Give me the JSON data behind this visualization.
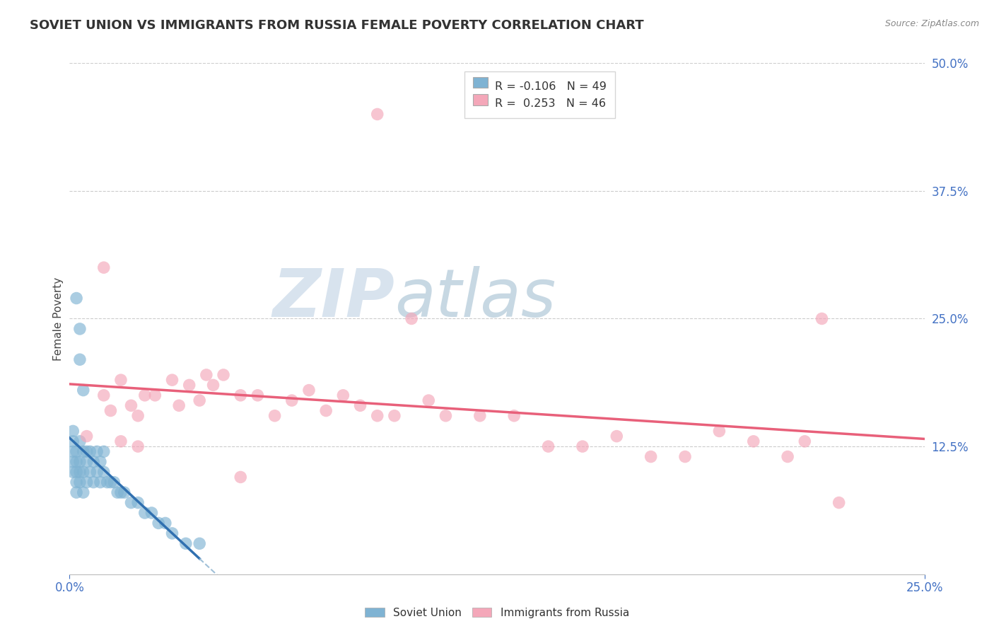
{
  "title": "SOVIET UNION VS IMMIGRANTS FROM RUSSIA FEMALE POVERTY CORRELATION CHART",
  "source": "Source: ZipAtlas.com",
  "ylabel": "Female Poverty",
  "xlim": [
    0.0,
    0.25
  ],
  "ylim": [
    0.0,
    0.5
  ],
  "xtick_labels": [
    "0.0%",
    "25.0%"
  ],
  "xtick_pos": [
    0.0,
    0.25
  ],
  "ytick_labels": [
    "12.5%",
    "25.0%",
    "37.5%",
    "50.0%"
  ],
  "ytick_positions": [
    0.125,
    0.25,
    0.375,
    0.5
  ],
  "legend_labels": [
    "Soviet Union",
    "Immigrants from Russia"
  ],
  "legend_r": [
    -0.106,
    0.253
  ],
  "legend_n": [
    49,
    46
  ],
  "blue_scatter_color": "#7fb3d3",
  "pink_scatter_color": "#f4a7b9",
  "blue_line_color": "#3070b0",
  "pink_line_color": "#e8607a",
  "dash_ext_color": "#a0c0d8",
  "watermark_zip": "ZIP",
  "watermark_atlas": "atlas",
  "soviet_x": [
    0.001,
    0.001,
    0.001,
    0.001,
    0.001,
    0.002,
    0.002,
    0.002,
    0.002,
    0.002,
    0.003,
    0.003,
    0.003,
    0.003,
    0.004,
    0.004,
    0.004,
    0.005,
    0.005,
    0.005,
    0.006,
    0.006,
    0.007,
    0.007,
    0.008,
    0.008,
    0.009,
    0.009,
    0.01,
    0.01,
    0.011,
    0.012,
    0.013,
    0.014,
    0.015,
    0.016,
    0.018,
    0.02,
    0.022,
    0.024,
    0.026,
    0.028,
    0.03,
    0.034,
    0.038,
    0.002,
    0.003,
    0.003,
    0.004
  ],
  "soviet_y": [
    0.1,
    0.11,
    0.12,
    0.13,
    0.14,
    0.08,
    0.09,
    0.1,
    0.11,
    0.12,
    0.09,
    0.1,
    0.11,
    0.13,
    0.08,
    0.1,
    0.12,
    0.09,
    0.11,
    0.12,
    0.1,
    0.12,
    0.09,
    0.11,
    0.1,
    0.12,
    0.09,
    0.11,
    0.1,
    0.12,
    0.09,
    0.09,
    0.09,
    0.08,
    0.08,
    0.08,
    0.07,
    0.07,
    0.06,
    0.06,
    0.05,
    0.05,
    0.04,
    0.03,
    0.03,
    0.27,
    0.24,
    0.21,
    0.18
  ],
  "russia_x": [
    0.01,
    0.012,
    0.015,
    0.018,
    0.02,
    0.022,
    0.025,
    0.03,
    0.032,
    0.035,
    0.038,
    0.04,
    0.042,
    0.045,
    0.05,
    0.055,
    0.06,
    0.065,
    0.07,
    0.075,
    0.08,
    0.085,
    0.09,
    0.095,
    0.1,
    0.105,
    0.11,
    0.12,
    0.13,
    0.14,
    0.15,
    0.16,
    0.17,
    0.18,
    0.19,
    0.2,
    0.21,
    0.215,
    0.22,
    0.225,
    0.01,
    0.005,
    0.015,
    0.02,
    0.05,
    0.09
  ],
  "russia_y": [
    0.175,
    0.16,
    0.19,
    0.165,
    0.155,
    0.175,
    0.175,
    0.19,
    0.165,
    0.185,
    0.17,
    0.195,
    0.185,
    0.195,
    0.175,
    0.175,
    0.155,
    0.17,
    0.18,
    0.16,
    0.175,
    0.165,
    0.155,
    0.155,
    0.25,
    0.17,
    0.155,
    0.155,
    0.155,
    0.125,
    0.125,
    0.135,
    0.115,
    0.115,
    0.14,
    0.13,
    0.115,
    0.13,
    0.25,
    0.07,
    0.3,
    0.135,
    0.13,
    0.125,
    0.095,
    0.45
  ]
}
